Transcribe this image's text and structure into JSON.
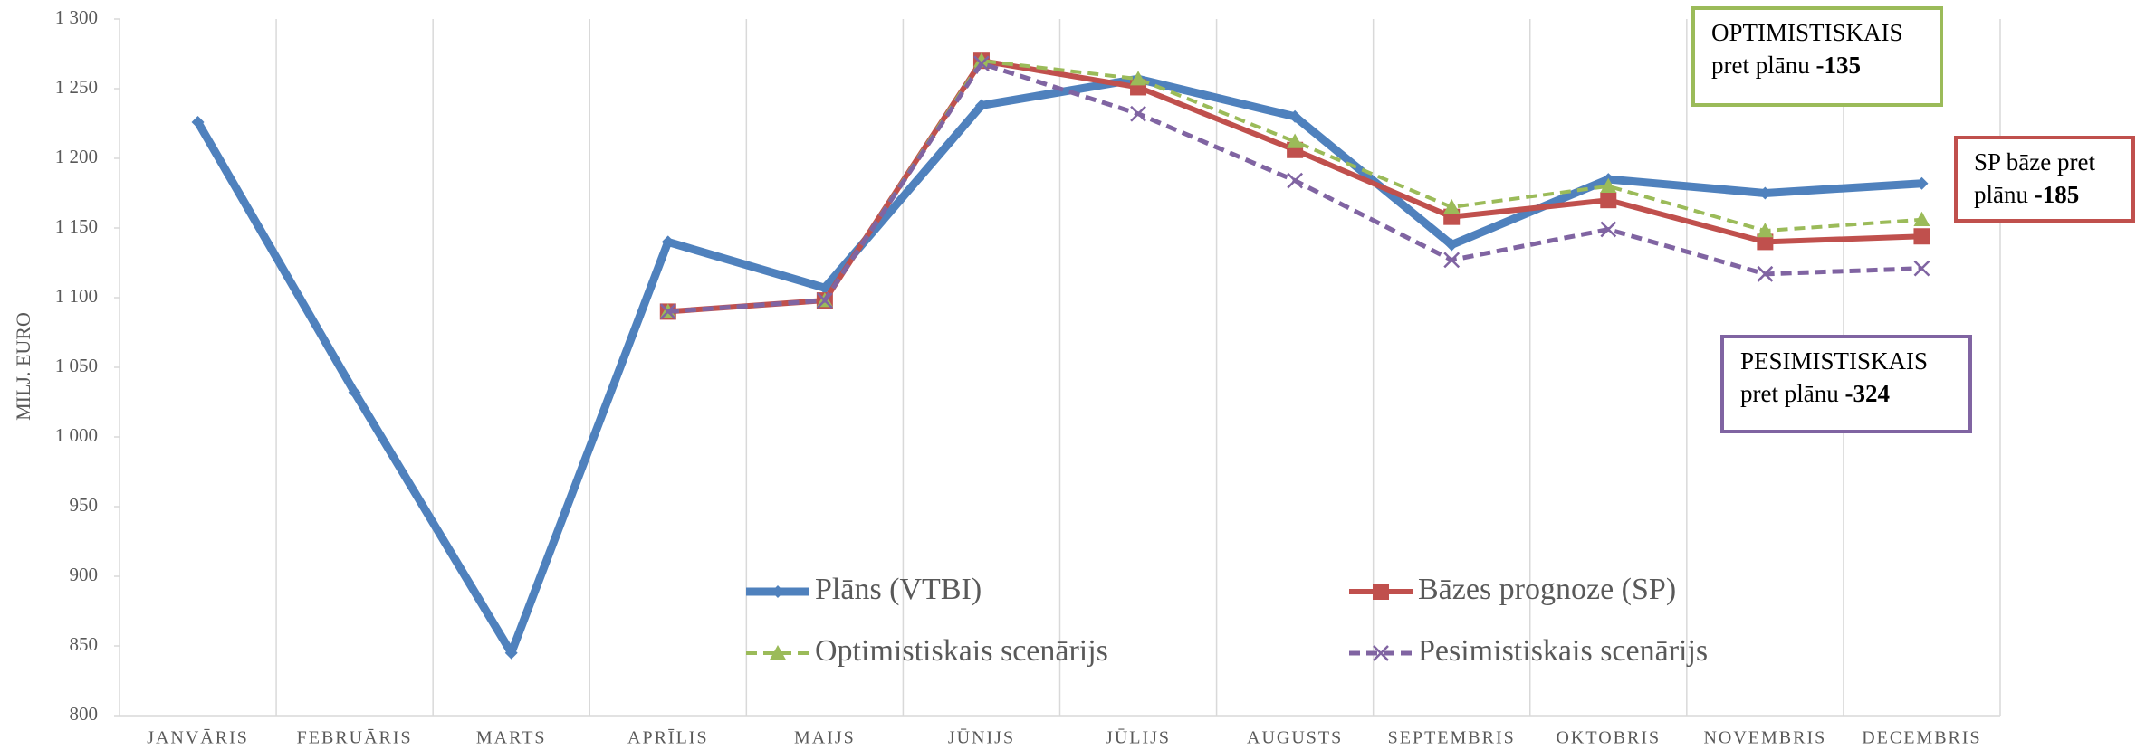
{
  "chart_data": {
    "type": "line",
    "y_label": "MILJ. EURO",
    "categories": [
      "JANVĀRIS",
      "FEBRUĀRIS",
      "MARTS",
      "APRĪLIS",
      "MAIJS",
      "JŪNIJS",
      "JŪLIJS",
      "AUGUSTS",
      "SEPTEMBRIS",
      "OKTOBRIS",
      "NOVEMBRIS",
      "DECEMBRIS"
    ],
    "series": [
      {
        "name": "Plāns (VTBI)",
        "color": "#4f81bd",
        "marker": "diamond",
        "dashed": false,
        "values": [
          1226,
          1032,
          845,
          1140,
          1107,
          1238,
          1257,
          1230,
          1138,
          1185,
          1175,
          1182
        ]
      },
      {
        "name": "Bāzes prognoze (SP)",
        "color": "#c0504d",
        "marker": "square",
        "dashed": false,
        "values": [
          null,
          null,
          null,
          1090,
          1098,
          1270,
          1251,
          1206,
          1158,
          1170,
          1140,
          1144
        ]
      },
      {
        "name": "Optimistiskais scenārijs",
        "color": "#9bbb59",
        "marker": "triangle",
        "dashed": true,
        "values": [
          null,
          null,
          null,
          1090,
          1098,
          1270,
          1257,
          1212,
          1165,
          1180,
          1148,
          1156
        ]
      },
      {
        "name": "Pesimistiskais scenārijs",
        "color": "#8064a2",
        "marker": "x",
        "dashed": true,
        "values": [
          null,
          null,
          null,
          1090,
          1098,
          1268,
          1232,
          1184,
          1127,
          1149,
          1117,
          1121
        ]
      }
    ],
    "ylim": [
      800,
      1300
    ],
    "yticks": [
      {
        "value": 800,
        "label": "800"
      },
      {
        "value": 850,
        "label": "850"
      },
      {
        "value": 900,
        "label": "900"
      },
      {
        "value": 950,
        "label": "950"
      },
      {
        "value": 1000,
        "label": "1 000"
      },
      {
        "value": 1050,
        "label": "1 050"
      },
      {
        "value": 1100,
        "label": "1 100"
      },
      {
        "value": 1150,
        "label": "1 150"
      },
      {
        "value": 1200,
        "label": "1 200"
      },
      {
        "value": 1250,
        "label": "1 250"
      },
      {
        "value": 1300,
        "label": "1 300"
      }
    ],
    "vertical_grid": true,
    "legend": "bottom",
    "annotations": [
      {
        "lines": [
          "OPTIMISTISKAIS",
          "pret plānu"
        ],
        "bold": "-135",
        "color": "#9bbb59"
      },
      {
        "lines": [
          "SP bāze pret",
          "plānu"
        ],
        "bold": "-185",
        "color": "#c0504d"
      },
      {
        "lines": [
          "PESIMISTISKAIS",
          "pret plānu"
        ],
        "bold": "-324",
        "color": "#8064a2"
      }
    ]
  }
}
